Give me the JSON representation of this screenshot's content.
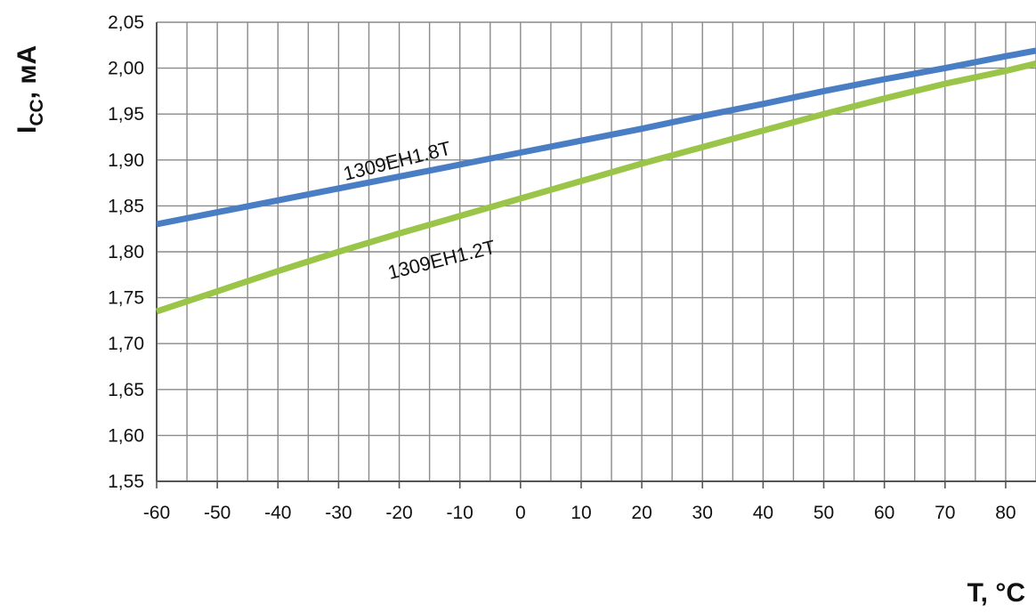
{
  "chart_data": {
    "type": "line",
    "xlabel": "T, °C",
    "ylabel_main": "I",
    "ylabel_sub": "CC",
    "ylabel_unit": ", мА",
    "xlim": [
      -60,
      85
    ],
    "ylim": [
      1.55,
      2.05
    ],
    "x_ticks": [
      "-60",
      "-50",
      "-40",
      "-30",
      "-20",
      "-10",
      "0",
      "10",
      "20",
      "30",
      "40",
      "50",
      "60",
      "70",
      "80"
    ],
    "x_tick_values": [
      -60,
      -50,
      -40,
      -30,
      -20,
      -10,
      0,
      10,
      20,
      30,
      40,
      50,
      60,
      70,
      80
    ],
    "y_ticks": [
      "1,55",
      "1,60",
      "1,65",
      "1,70",
      "1,75",
      "1,80",
      "1,85",
      "1,90",
      "1,95",
      "2,00",
      "2,05"
    ],
    "y_tick_values": [
      1.55,
      1.6,
      1.65,
      1.7,
      1.75,
      1.8,
      1.85,
      1.9,
      1.95,
      2.0,
      2.05
    ],
    "grid": true,
    "series": [
      {
        "name": "1309ЕН1.8Т",
        "color": "#4a7ec4",
        "x": [
          -60,
          -50,
          -40,
          -30,
          -20,
          -10,
          0,
          10,
          20,
          30,
          40,
          50,
          60,
          70,
          80,
          85
        ],
        "y": [
          1.83,
          1.843,
          1.856,
          1.869,
          1.882,
          1.895,
          1.908,
          1.921,
          1.934,
          1.948,
          1.961,
          1.975,
          1.988,
          2.0,
          2.013,
          2.019
        ]
      },
      {
        "name": "1309ЕН1.2Т",
        "color": "#9bc548",
        "x": [
          -60,
          -50,
          -40,
          -30,
          -20,
          -10,
          0,
          10,
          20,
          30,
          40,
          50,
          60,
          70,
          80,
          85
        ],
        "y": [
          1.735,
          1.757,
          1.779,
          1.8,
          1.82,
          1.839,
          1.858,
          1.877,
          1.896,
          1.914,
          1.932,
          1.95,
          1.967,
          1.983,
          1.997,
          2.005
        ]
      }
    ]
  }
}
